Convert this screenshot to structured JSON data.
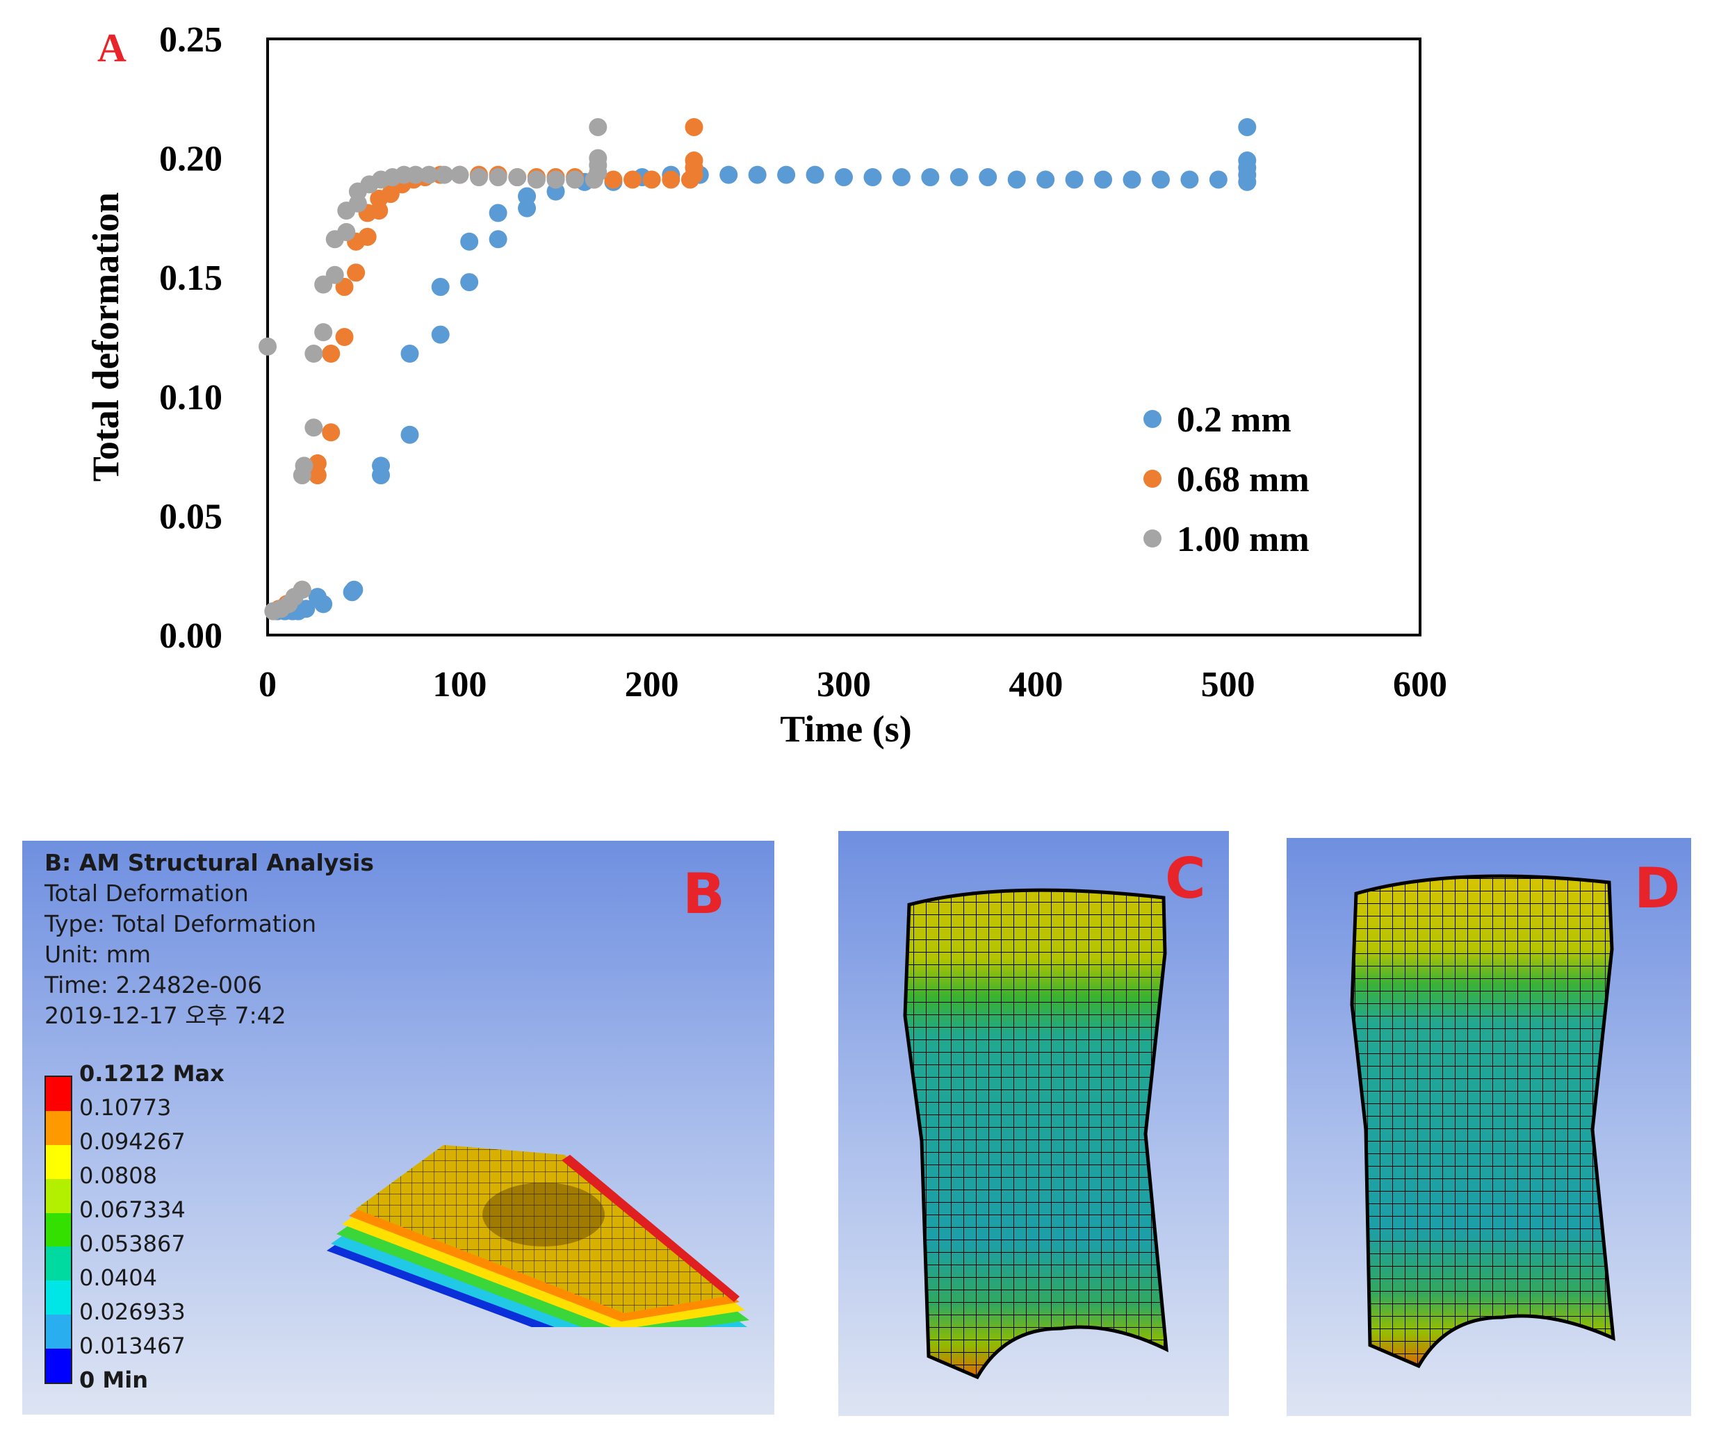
{
  "chart_data": {
    "type": "scatter",
    "panel_label": "A",
    "xlabel": "Time (s)",
    "ylabel": "Total deformation",
    "xlim": [
      0,
      600
    ],
    "ylim": [
      0,
      0.25
    ],
    "xticks": [
      "0",
      "100",
      "200",
      "300",
      "400",
      "500",
      "600"
    ],
    "yticks": [
      "0.00",
      "0.05",
      "0.10",
      "0.15",
      "0.20",
      "0.25"
    ],
    "legend_position": "right-middle",
    "grid": false,
    "series": [
      {
        "name": "0.2 mm",
        "color": "#5b9bd5",
        "points": [
          [
            5,
            0.01
          ],
          [
            9,
            0.01
          ],
          [
            13,
            0.01
          ],
          [
            16,
            0.01
          ],
          [
            20,
            0.011
          ],
          [
            26,
            0.016
          ],
          [
            29,
            0.013
          ],
          [
            44,
            0.018
          ],
          [
            45,
            0.019
          ],
          [
            59,
            0.067
          ],
          [
            59,
            0.071
          ],
          [
            74,
            0.084
          ],
          [
            74,
            0.118
          ],
          [
            90,
            0.126
          ],
          [
            90,
            0.146
          ],
          [
            105,
            0.148
          ],
          [
            105,
            0.165
          ],
          [
            120,
            0.166
          ],
          [
            120,
            0.177
          ],
          [
            135,
            0.179
          ],
          [
            135,
            0.184
          ],
          [
            150,
            0.186
          ],
          [
            165,
            0.19
          ],
          [
            180,
            0.19
          ],
          [
            195,
            0.192
          ],
          [
            210,
            0.193
          ],
          [
            225,
            0.193
          ],
          [
            240,
            0.193
          ],
          [
            255,
            0.193
          ],
          [
            270,
            0.193
          ],
          [
            285,
            0.193
          ],
          [
            300,
            0.192
          ],
          [
            315,
            0.192
          ],
          [
            330,
            0.192
          ],
          [
            345,
            0.192
          ],
          [
            360,
            0.192
          ],
          [
            375,
            0.192
          ],
          [
            390,
            0.191
          ],
          [
            405,
            0.191
          ],
          [
            420,
            0.191
          ],
          [
            435,
            0.191
          ],
          [
            450,
            0.191
          ],
          [
            465,
            0.191
          ],
          [
            480,
            0.191
          ],
          [
            495,
            0.191
          ],
          [
            510,
            0.19
          ],
          [
            510,
            0.193
          ],
          [
            510,
            0.196
          ],
          [
            510,
            0.199
          ],
          [
            510,
            0.213
          ]
        ]
      },
      {
        "name": "0.68 mm",
        "color": "#ed7d31",
        "points": [
          [
            6,
            0.011
          ],
          [
            10,
            0.013
          ],
          [
            14,
            0.016
          ],
          [
            18,
            0.019
          ],
          [
            20,
            0.07
          ],
          [
            26,
            0.067
          ],
          [
            26,
            0.072
          ],
          [
            33,
            0.085
          ],
          [
            33,
            0.118
          ],
          [
            40,
            0.125
          ],
          [
            40,
            0.146
          ],
          [
            46,
            0.152
          ],
          [
            46,
            0.165
          ],
          [
            52,
            0.167
          ],
          [
            52,
            0.177
          ],
          [
            58,
            0.178
          ],
          [
            58,
            0.183
          ],
          [
            64,
            0.185
          ],
          [
            70,
            0.189
          ],
          [
            76,
            0.191
          ],
          [
            82,
            0.192
          ],
          [
            90,
            0.193
          ],
          [
            100,
            0.193
          ],
          [
            110,
            0.193
          ],
          [
            120,
            0.193
          ],
          [
            130,
            0.192
          ],
          [
            140,
            0.192
          ],
          [
            150,
            0.192
          ],
          [
            160,
            0.192
          ],
          [
            170,
            0.191
          ],
          [
            180,
            0.191
          ],
          [
            190,
            0.191
          ],
          [
            200,
            0.191
          ],
          [
            210,
            0.191
          ],
          [
            220,
            0.191
          ],
          [
            222,
            0.193
          ],
          [
            222,
            0.196
          ],
          [
            222,
            0.199
          ],
          [
            222,
            0.213
          ]
        ]
      },
      {
        "name": "1.00 mm",
        "color": "#a5a5a5",
        "points": [
          [
            0,
            0.121
          ],
          [
            3,
            0.01
          ],
          [
            7,
            0.011
          ],
          [
            11,
            0.013
          ],
          [
            14,
            0.016
          ],
          [
            18,
            0.019
          ],
          [
            18,
            0.067
          ],
          [
            19,
            0.071
          ],
          [
            24,
            0.087
          ],
          [
            24,
            0.118
          ],
          [
            29,
            0.127
          ],
          [
            29,
            0.147
          ],
          [
            35,
            0.151
          ],
          [
            35,
            0.166
          ],
          [
            41,
            0.169
          ],
          [
            41,
            0.178
          ],
          [
            47,
            0.181
          ],
          [
            47,
            0.186
          ],
          [
            53,
            0.189
          ],
          [
            59,
            0.191
          ],
          [
            65,
            0.192
          ],
          [
            71,
            0.193
          ],
          [
            77,
            0.193
          ],
          [
            84,
            0.193
          ],
          [
            92,
            0.193
          ],
          [
            100,
            0.193
          ],
          [
            110,
            0.192
          ],
          [
            120,
            0.192
          ],
          [
            130,
            0.192
          ],
          [
            140,
            0.191
          ],
          [
            150,
            0.191
          ],
          [
            160,
            0.191
          ],
          [
            170,
            0.191
          ],
          [
            172,
            0.194
          ],
          [
            172,
            0.197
          ],
          [
            172,
            0.2
          ],
          [
            172,
            0.213
          ]
        ]
      }
    ]
  },
  "panel_b": {
    "letter": "B",
    "title": "B: AM Structural Analysis",
    "lines": [
      "Total Deformation",
      "Type: Total Deformation",
      "Unit: mm",
      "Time: 2.2482e-006",
      "2019-12-17 오후 7:42"
    ],
    "legend_labels": [
      "0.1212 Max",
      "0.10773",
      "0.094267",
      "0.0808",
      "0.067334",
      "0.053867",
      "0.0404",
      "0.026933",
      "0.013467",
      "0 Min"
    ],
    "legend_colors": [
      "#ff0000",
      "#ff9900",
      "#ffff00",
      "#b3f000",
      "#33e000",
      "#00d9a0",
      "#00e6e6",
      "#29aef0",
      "#0000ff"
    ]
  },
  "panel_c": {
    "letter": "C"
  },
  "panel_d": {
    "letter": "D"
  }
}
